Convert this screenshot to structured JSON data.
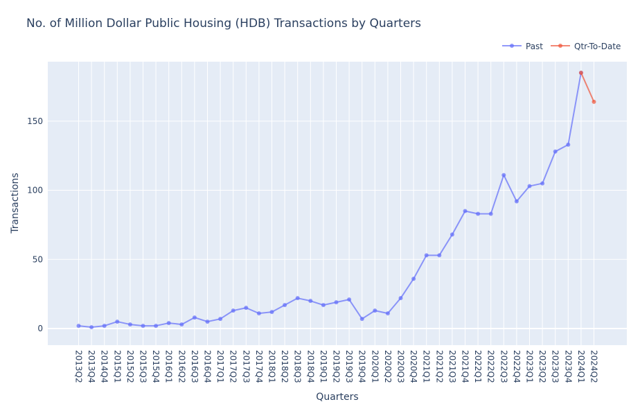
{
  "chart_data": {
    "type": "line",
    "title": "No. of Million Dollar Public Housing (HDB) Transactions by Quarters",
    "xlabel": "Quarters",
    "ylabel": "Transactions",
    "ylim": [
      -12,
      193
    ],
    "y_ticks": [
      0,
      50,
      100,
      150
    ],
    "grid": true,
    "legend_position": "top-right",
    "background_color": "#E5ECF6",
    "categories": [
      "2013Q2",
      "2013Q4",
      "2014Q4",
      "2015Q1",
      "2015Q2",
      "2015Q3",
      "2015Q4",
      "2016Q1",
      "2016Q2",
      "2016Q3",
      "2016Q4",
      "2017Q1",
      "2017Q2",
      "2017Q3",
      "2017Q4",
      "2018Q1",
      "2018Q2",
      "2018Q3",
      "2018Q4",
      "2019Q1",
      "2019Q2",
      "2019Q3",
      "2019Q4",
      "2020Q1",
      "2020Q2",
      "2020Q3",
      "2020Q4",
      "2021Q1",
      "2021Q2",
      "2021Q3",
      "2021Q4",
      "2022Q1",
      "2022Q2",
      "2022Q3",
      "2022Q4",
      "2023Q1",
      "2023Q2",
      "2023Q3",
      "2023Q4",
      "2024Q1",
      "2024Q2"
    ],
    "series": [
      {
        "name": "Past",
        "color": "#636EFA",
        "x": [
          "2013Q2",
          "2013Q4",
          "2014Q4",
          "2015Q1",
          "2015Q2",
          "2015Q3",
          "2015Q4",
          "2016Q1",
          "2016Q2",
          "2016Q3",
          "2016Q4",
          "2017Q1",
          "2017Q2",
          "2017Q3",
          "2017Q4",
          "2018Q1",
          "2018Q2",
          "2018Q3",
          "2018Q4",
          "2019Q1",
          "2019Q2",
          "2019Q3",
          "2019Q4",
          "2020Q1",
          "2020Q2",
          "2020Q3",
          "2020Q4",
          "2021Q1",
          "2021Q2",
          "2021Q3",
          "2021Q4",
          "2022Q1",
          "2022Q2",
          "2022Q3",
          "2022Q4",
          "2023Q1",
          "2023Q2",
          "2023Q3",
          "2023Q4",
          "2024Q1"
        ],
        "values": [
          2,
          1,
          2,
          5,
          3,
          2,
          2,
          4,
          3,
          8,
          5,
          7,
          13,
          15,
          11,
          12,
          17,
          22,
          20,
          17,
          19,
          21,
          7,
          13,
          11,
          22,
          36,
          53,
          53,
          68,
          85,
          83,
          83,
          111,
          92,
          103,
          105,
          128,
          133,
          185
        ]
      },
      {
        "name": "Qtr-To-Date",
        "color": "#EF553B",
        "x": [
          "2024Q1",
          "2024Q2"
        ],
        "values": [
          185,
          164
        ]
      }
    ]
  }
}
